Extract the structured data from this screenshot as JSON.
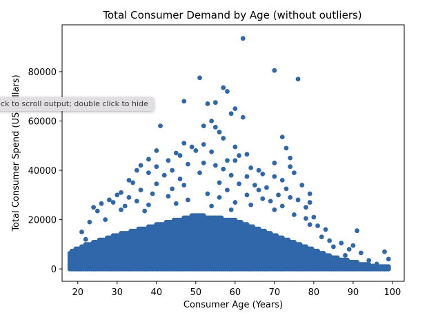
{
  "tooltip": {
    "text": "ick to scroll output; double click to hide"
  },
  "chart_data": {
    "type": "scatter",
    "title": "Total Consumer Demand by Age (without outliers)",
    "xlabel": "Consumer Age (Years)",
    "ylabel": "Total Consumer Spend (US Dollars)",
    "xlim": [
      16,
      103
    ],
    "ylim": [
      -5000,
      99000
    ],
    "xticks": [
      20,
      30,
      40,
      50,
      60,
      70,
      80,
      90,
      100
    ],
    "yticks": [
      0,
      20000,
      40000,
      60000,
      80000
    ],
    "grid": false,
    "marker_color": "#2f67a9",
    "dense_band": [
      [
        18,
        7000
      ],
      [
        22,
        10000
      ],
      [
        26,
        12000
      ],
      [
        30,
        14000
      ],
      [
        35,
        16000
      ],
      [
        40,
        18000
      ],
      [
        45,
        20000
      ],
      [
        50,
        22000
      ],
      [
        55,
        21000
      ],
      [
        60,
        20000
      ],
      [
        65,
        17000
      ],
      [
        70,
        14000
      ],
      [
        75,
        11000
      ],
      [
        80,
        8000
      ],
      [
        85,
        5000
      ],
      [
        90,
        3000
      ],
      [
        95,
        1500
      ],
      [
        99,
        1000
      ]
    ],
    "points": [
      [
        62,
        93500
      ],
      [
        70,
        80500
      ],
      [
        51,
        77500
      ],
      [
        76,
        77000
      ],
      [
        57,
        73500
      ],
      [
        58,
        72000
      ],
      [
        47,
        68000
      ],
      [
        53,
        67000
      ],
      [
        55,
        67500
      ],
      [
        60,
        65000
      ],
      [
        59,
        63000
      ],
      [
        62,
        61500
      ],
      [
        54,
        60000
      ],
      [
        41,
        58000
      ],
      [
        52,
        58000
      ],
      [
        55,
        57500
      ],
      [
        56,
        55500
      ],
      [
        57,
        53000
      ],
      [
        72,
        53500
      ],
      [
        47,
        51000
      ],
      [
        49,
        49500
      ],
      [
        52,
        50500
      ],
      [
        60,
        49500
      ],
      [
        73,
        49000
      ],
      [
        40,
        48000
      ],
      [
        45,
        47000
      ],
      [
        50,
        48000
      ],
      [
        54,
        47500
      ],
      [
        46,
        46000
      ],
      [
        61,
        46000
      ],
      [
        63,
        46500
      ],
      [
        38,
        44500
      ],
      [
        43,
        44000
      ],
      [
        58,
        44000
      ],
      [
        60,
        44000
      ],
      [
        74,
        45000
      ],
      [
        70,
        43000
      ],
      [
        52,
        43000
      ],
      [
        48,
        42500
      ],
      [
        36,
        42000
      ],
      [
        40,
        41500
      ],
      [
        55,
        42000
      ],
      [
        35,
        40000
      ],
      [
        44,
        40000
      ],
      [
        57,
        40500
      ],
      [
        64,
        41000
      ],
      [
        74,
        41500
      ],
      [
        66,
        40000
      ],
      [
        38,
        39000
      ],
      [
        42,
        38000
      ],
      [
        51,
        39000
      ],
      [
        59,
        38000
      ],
      [
        67,
        38500
      ],
      [
        75,
        39000
      ],
      [
        63,
        37500
      ],
      [
        33,
        36000
      ],
      [
        46,
        36500
      ],
      [
        56,
        35000
      ],
      [
        70,
        37500
      ],
      [
        72,
        36000
      ],
      [
        34,
        35000
      ],
      [
        40,
        34500
      ],
      [
        47,
        34000
      ],
      [
        61,
        34500
      ],
      [
        65,
        34000
      ],
      [
        68,
        33000
      ],
      [
        77,
        34000
      ],
      [
        31,
        31000
      ],
      [
        36,
        32000
      ],
      [
        44,
        32500
      ],
      [
        58,
        32000
      ],
      [
        66,
        32000
      ],
      [
        73,
        32500
      ],
      [
        30,
        30000
      ],
      [
        39,
        30500
      ],
      [
        53,
        30500
      ],
      [
        63,
        30000
      ],
      [
        71,
        30000
      ],
      [
        79,
        30500
      ],
      [
        28,
        28000
      ],
      [
        33,
        29000
      ],
      [
        43,
        29500
      ],
      [
        56,
        29000
      ],
      [
        67,
        28500
      ],
      [
        74,
        29000
      ],
      [
        76,
        28000
      ],
      [
        26,
        26500
      ],
      [
        29,
        27000
      ],
      [
        35,
        27500
      ],
      [
        48,
        28000
      ],
      [
        60,
        27000
      ],
      [
        69,
        27500
      ],
      [
        79,
        27000
      ],
      [
        24,
        25000
      ],
      [
        32,
        25500
      ],
      [
        38,
        26000
      ],
      [
        45,
        26500
      ],
      [
        54,
        25500
      ],
      [
        64,
        26000
      ],
      [
        72,
        25500
      ],
      [
        78,
        25000
      ],
      [
        25,
        23500
      ],
      [
        31,
        24000
      ],
      [
        37,
        23500
      ],
      [
        59,
        24000
      ],
      [
        70,
        24000
      ],
      [
        23,
        19000
      ],
      [
        27,
        20000
      ],
      [
        75,
        22000
      ],
      [
        78,
        20500
      ],
      [
        80,
        21000
      ],
      [
        79,
        18000
      ],
      [
        81,
        17500
      ],
      [
        21,
        15000
      ],
      [
        83,
        16000
      ],
      [
        91,
        15500
      ],
      [
        22,
        12000
      ],
      [
        82,
        13000
      ],
      [
        87,
        10500
      ],
      [
        84,
        11500
      ],
      [
        90,
        9500
      ],
      [
        89,
        8000
      ],
      [
        85,
        9000
      ],
      [
        98,
        7000
      ],
      [
        92,
        6500
      ],
      [
        88,
        5500
      ],
      [
        99,
        4000
      ],
      [
        94,
        3500
      ],
      [
        91,
        2500
      ],
      [
        96,
        2000
      ],
      [
        93,
        1500
      ],
      [
        95,
        1200
      ],
      [
        98,
        800
      ],
      [
        99,
        200
      ],
      [
        86,
        1800
      ],
      [
        87,
        2800
      ],
      [
        19,
        300
      ],
      [
        18,
        200
      ],
      [
        20,
        800
      ],
      [
        19,
        3000
      ],
      [
        20,
        5000
      ],
      [
        21,
        6500
      ],
      [
        22,
        9000
      ]
    ]
  }
}
